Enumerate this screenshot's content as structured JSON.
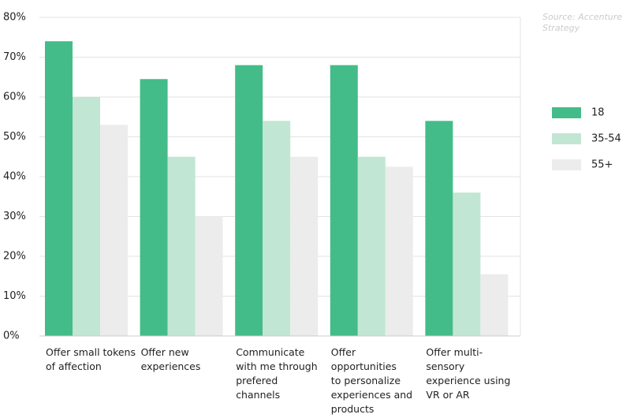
{
  "chart_data": {
    "type": "bar",
    "source": "Source: Accenture Strategy",
    "categories": [
      "Offer small tokens\nof affection",
      "Offer new\nexperiences",
      "Communicate\nwith me through\nprefered\nchannels",
      "Offer\nopportunities\nto personalize\nexperiences and\nproducts",
      "Offer multi-\nsensory\nexperience using\nVR or AR"
    ],
    "series": [
      {
        "name": "18",
        "color": "#43bc89",
        "values": [
          74,
          64.5,
          68,
          68,
          54
        ]
      },
      {
        "name": "35-54",
        "color": "#c1e6d3",
        "values": [
          60,
          45,
          54,
          45,
          36
        ]
      },
      {
        "name": "55+",
        "color": "#ececec",
        "values": [
          53,
          30,
          45,
          42.5,
          15.5
        ]
      }
    ],
    "ylim": [
      0,
      80
    ],
    "yticks": [
      {
        "value": 0,
        "label": "0%"
      },
      {
        "value": 10,
        "label": "10%"
      },
      {
        "value": 20,
        "label": "20%"
      },
      {
        "value": 30,
        "label": "30%"
      },
      {
        "value": 40,
        "label": "40%"
      },
      {
        "value": 50,
        "label": "50%"
      },
      {
        "value": 60,
        "label": "60%"
      },
      {
        "value": 70,
        "label": "70%"
      },
      {
        "value": 80,
        "label": "80%"
      }
    ],
    "grid": true,
    "legend": "right"
  }
}
